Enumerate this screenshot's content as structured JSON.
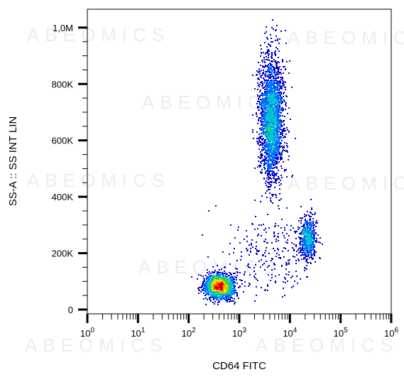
{
  "chart_data": {
    "type": "scatter",
    "subtype": "flow-cytometry-density-dot-plot",
    "title": "",
    "xlabel": "CD64 FITC",
    "ylabel": "SS-A :: SS INT LIN",
    "x_scale": "log",
    "xlim": [
      1,
      1000000
    ],
    "ylim": [
      0,
      1050000
    ],
    "x_ticks": [
      {
        "value": 1,
        "base": "10",
        "exp": "0"
      },
      {
        "value": 10,
        "base": "10",
        "exp": "1"
      },
      {
        "value": 100,
        "base": "10",
        "exp": "2"
      },
      {
        "value": 1000,
        "base": "10",
        "exp": "3"
      },
      {
        "value": 10000,
        "base": "10",
        "exp": "4"
      },
      {
        "value": 100000,
        "base": "10",
        "exp": "5"
      },
      {
        "value": 1000000,
        "base": "10",
        "exp": "6"
      }
    ],
    "y_ticks": [
      {
        "value": 0,
        "label": "0"
      },
      {
        "value": 200000,
        "label": "200K"
      },
      {
        "value": 400000,
        "label": "400K"
      },
      {
        "value": 600000,
        "label": "600K"
      },
      {
        "value": 800000,
        "label": "800K"
      },
      {
        "value": 1000000,
        "label": "1,0M"
      }
    ],
    "grid": false,
    "legend": "none",
    "density_colormap": [
      "#0000c8",
      "#0070ff",
      "#00c8c8",
      "#40d040",
      "#e8e800",
      "#ff8000",
      "#e00000"
    ],
    "populations": [
      {
        "center_x": 400,
        "center_y": 85000,
        "spread_log10_x": 0.14,
        "spread_y": 22000,
        "relative_count": 1800
      },
      {
        "center_x": 4200,
        "center_y": 680000,
        "spread_log10_x": 0.12,
        "spread_y": 110000,
        "relative_count": 2400
      },
      {
        "center_x": 22000,
        "center_y": 255000,
        "spread_log10_x": 0.08,
        "spread_y": 38000,
        "relative_count": 550
      },
      {
        "center_x": 4000,
        "center_y": 200000,
        "spread_log10_x": 0.45,
        "spread_y": 70000,
        "relative_count": 260
      }
    ],
    "watermark": "ABEOMICS"
  }
}
